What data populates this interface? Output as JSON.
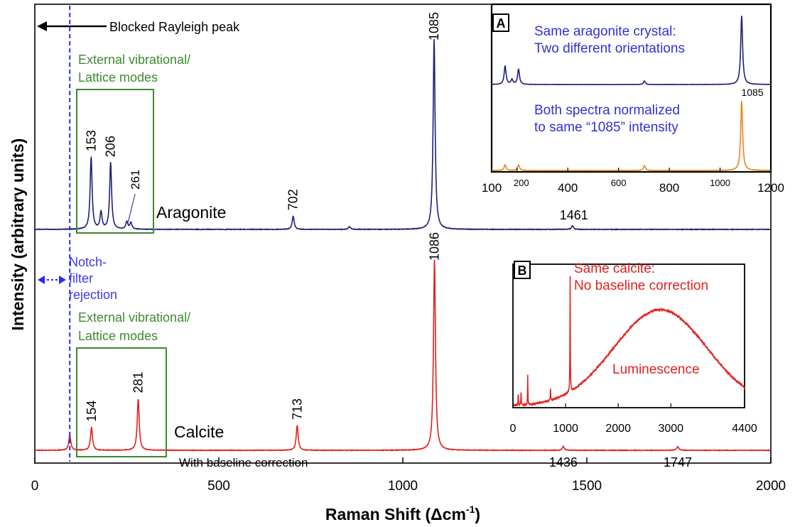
{
  "chart_data": {
    "type": "line",
    "xlabel": "Raman Shift (Δcm⁻¹)",
    "xlabel_main": "Raman Shift (Δcm",
    "xlabel_sup": "-1",
    "xlabel_close": ")",
    "ylabel": "Intensity (arbitrary units)",
    "xlim": [
      0,
      2000
    ],
    "xticks": [
      "0",
      "500",
      "1000",
      "1500",
      "2000"
    ],
    "xtick_values": [
      0,
      500,
      1000,
      1500,
      2000
    ],
    "grid": false,
    "series": [
      {
        "name": "Aragonite",
        "color": "#1f1f7a",
        "baseline": 0.0,
        "peaks": [
          {
            "x": 153,
            "label": "153",
            "height": 0.38
          },
          {
            "x": 180,
            "label": "",
            "height": 0.09
          },
          {
            "x": 206,
            "label": "206",
            "height": 0.35
          },
          {
            "x": 250,
            "label": "",
            "height": 0.04
          },
          {
            "x": 261,
            "label": "261",
            "height": 0.035
          },
          {
            "x": 702,
            "label": "702",
            "height": 0.07
          },
          {
            "x": 855,
            "label": "",
            "height": 0.015
          },
          {
            "x": 1085,
            "label": "1085",
            "height": 1.0
          },
          {
            "x": 1461,
            "label": "1461",
            "height": 0.02
          }
        ]
      },
      {
        "name": "Calcite",
        "color": "#e02020",
        "baseline": 0.0,
        "peaks": [
          {
            "x": 95,
            "label": "",
            "height": 0.08
          },
          {
            "x": 154,
            "label": "154",
            "height": 0.12
          },
          {
            "x": 281,
            "label": "281",
            "height": 0.27
          },
          {
            "x": 713,
            "label": "713",
            "height": 0.13
          },
          {
            "x": 1086,
            "label": "1086",
            "height": 1.0
          },
          {
            "x": 1436,
            "label": "1436",
            "height": 0.02
          },
          {
            "x": 1747,
            "label": "1747",
            "height": 0.02
          }
        ]
      }
    ],
    "annotations": {
      "rayleigh": "Blocked Rayleigh peak",
      "notch": [
        "Notch-",
        "filter",
        "rejection"
      ],
      "external_modes": [
        "External vibrational/",
        "Lattice modes"
      ],
      "aragonite_label": "Aragonite",
      "calcite_label": "Calcite",
      "baseline_note": "With baseline correction",
      "notch_line_x": 95
    },
    "insets": [
      {
        "id": "A",
        "badge": "A",
        "xlim": [
          100,
          1200
        ],
        "xticks": [
          "100",
          "200",
          "400",
          "600",
          "800",
          "1000",
          "1200"
        ],
        "xtick_values": [
          100,
          200,
          400,
          600,
          800,
          1000,
          1200
        ],
        "text_lines_top": [
          "Same aragonite crystal:",
          "Two different orientations"
        ],
        "text_lines_bottom": [
          "Both spectra normalized",
          "to same “1085” intensity"
        ],
        "peak_label": "1085",
        "series": [
          {
            "name": "",
            "color": "#1f1f7a",
            "peaks": [
              {
                "x": 153,
                "height": 0.27
              },
              {
                "x": 180,
                "height": 0.07
              },
              {
                "x": 206,
                "height": 0.22
              },
              {
                "x": 702,
                "height": 0.05
              },
              {
                "x": 1085,
                "height": 1.0
              }
            ]
          },
          {
            "name": "",
            "color": "#e8841e",
            "peaks": [
              {
                "x": 153,
                "height": 0.08
              },
              {
                "x": 206,
                "height": 0.08
              },
              {
                "x": 702,
                "height": 0.07
              },
              {
                "x": 1085,
                "height": 1.0
              }
            ]
          }
        ]
      },
      {
        "id": "B",
        "badge": "B",
        "xlim": [
          0,
          4400
        ],
        "xticks": [
          "0",
          "1000",
          "2000",
          "3000",
          "4400"
        ],
        "xtick_values": [
          0,
          1000,
          2000,
          3000,
          4400
        ],
        "text_lines": [
          "Same calcite:",
          "No baseline correction"
        ],
        "luminescence_label": "Luminescence",
        "series": [
          {
            "name": "",
            "color": "#e02020",
            "peaks": [
              {
                "x": 100,
                "height": 0.08
              },
              {
                "x": 154,
                "height": 0.1
              },
              {
                "x": 281,
                "height": 0.2
              },
              {
                "x": 713,
                "height": 0.08
              },
              {
                "x": 1086,
                "height": 0.8
              }
            ],
            "broad_band": {
              "center": 2800,
              "width": 1250,
              "height": 0.66
            }
          }
        ]
      }
    ]
  }
}
